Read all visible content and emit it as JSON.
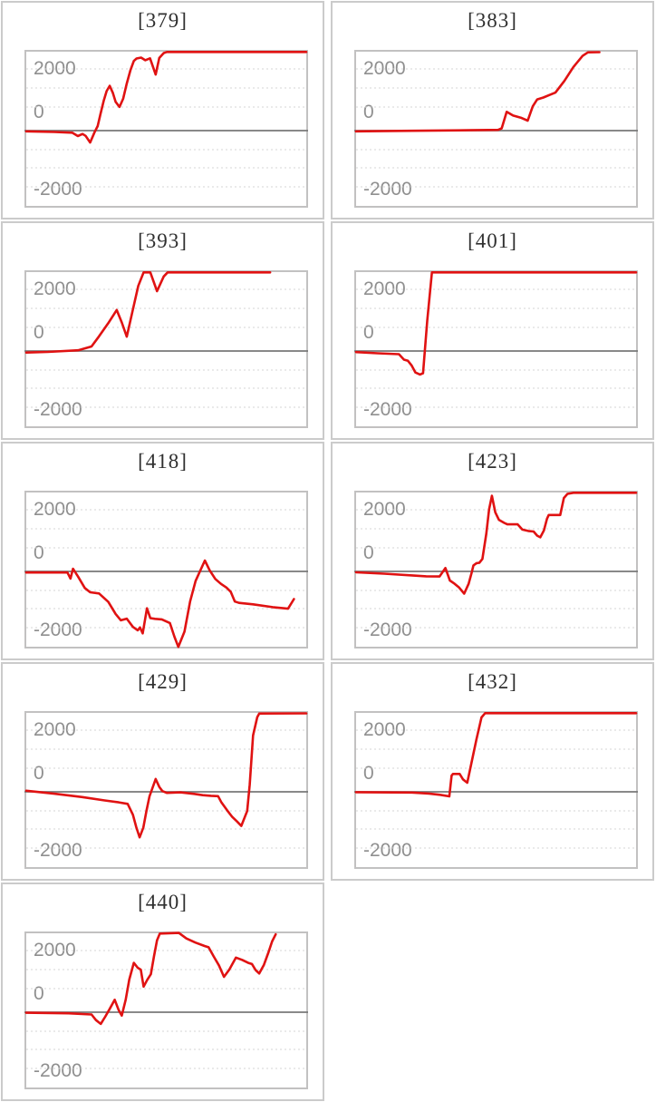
{
  "page": {
    "background": "#ffffff",
    "layout": "3x3-grid-of-sparkline-charts"
  },
  "axis": {
    "tick_labels": {
      "top": "2000",
      "mid": "0",
      "bottom": "-2000"
    },
    "gridline_interval_units": 500,
    "zero_line_value": 0,
    "visible_range": [
      -2100,
      2100
    ],
    "grid": "dotted-horizontal"
  },
  "style": {
    "line_color": "#e01212",
    "grid_color": "#d6d6d6",
    "zero_line_color": "#787878",
    "plot_border_color": "#c2c1c1",
    "tile_border_color": "#cbcbcb",
    "label_color": "#8f8f8f",
    "title_color": "#303030"
  },
  "chart_data": [
    {
      "type": "line",
      "title": "[379]",
      "ylabel": "",
      "xlabel": "",
      "ylim": [
        -2100,
        2100
      ],
      "legend": "none",
      "points": [
        [
          0,
          -20
        ],
        [
          10,
          -35
        ],
        [
          16.4,
          -55
        ],
        [
          18.4,
          -145
        ],
        [
          20.1,
          -90
        ],
        [
          21.2,
          -140
        ],
        [
          22.8,
          -315
        ],
        [
          24.4,
          -40
        ],
        [
          25.5,
          120
        ],
        [
          26.5,
          440
        ],
        [
          27.7,
          805
        ],
        [
          28.7,
          1050
        ],
        [
          29.8,
          1190
        ],
        [
          30.9,
          1005
        ],
        [
          31.9,
          765
        ],
        [
          33.3,
          630
        ],
        [
          34.6,
          845
        ],
        [
          35.9,
          1250
        ],
        [
          37.2,
          1600
        ],
        [
          38.4,
          1850
        ],
        [
          39.4,
          1915
        ],
        [
          41,
          1940
        ],
        [
          42.5,
          1870
        ],
        [
          44.2,
          1920
        ],
        [
          46.2,
          1490
        ],
        [
          47.5,
          1930
        ],
        [
          49.1,
          2060
        ],
        [
          50.2,
          2090
        ],
        [
          100,
          2090
        ]
      ]
    },
    {
      "type": "line",
      "title": "[383]",
      "ylabel": "",
      "xlabel": "",
      "ylim": [
        -2100,
        2100
      ],
      "legend": "none",
      "points": [
        [
          0,
          -20
        ],
        [
          20,
          -5
        ],
        [
          40,
          10
        ],
        [
          50.7,
          20
        ],
        [
          52,
          60
        ],
        [
          53.8,
          500
        ],
        [
          56.1,
          400
        ],
        [
          58.8,
          345
        ],
        [
          61.3,
          265
        ],
        [
          63.1,
          645
        ],
        [
          64.7,
          830
        ],
        [
          66.9,
          880
        ],
        [
          69,
          945
        ],
        [
          71.2,
          1010
        ],
        [
          74.4,
          1320
        ],
        [
          77.6,
          1690
        ],
        [
          80.9,
          1985
        ],
        [
          82.8,
          2080
        ],
        [
          86.9,
          2085
        ]
      ]
    },
    {
      "type": "line",
      "title": "[393]",
      "ylabel": "",
      "xlabel": "",
      "ylim": [
        -2100,
        2100
      ],
      "legend": "none",
      "points": [
        [
          0,
          -40
        ],
        [
          7.7,
          -25
        ],
        [
          18.5,
          20
        ],
        [
          23.3,
          120
        ],
        [
          26,
          390
        ],
        [
          29.3,
          740
        ],
        [
          32.3,
          1090
        ],
        [
          34.1,
          760
        ],
        [
          35.9,
          380
        ],
        [
          37.8,
          1010
        ],
        [
          40,
          1730
        ],
        [
          41.9,
          2090
        ],
        [
          44.3,
          2090
        ],
        [
          46.7,
          1590
        ],
        [
          49.1,
          1980
        ],
        [
          50.5,
          2090
        ],
        [
          87.1,
          2090
        ]
      ]
    },
    {
      "type": "line",
      "title": "[401]",
      "ylabel": "",
      "xlabel": "",
      "ylim": [
        -2100,
        2100
      ],
      "legend": "none",
      "points": [
        [
          0,
          -30
        ],
        [
          7.7,
          -60
        ],
        [
          15.3,
          -85
        ],
        [
          17.1,
          -230
        ],
        [
          18.5,
          -260
        ],
        [
          19.8,
          -380
        ],
        [
          21.2,
          -570
        ],
        [
          22.8,
          -625
        ],
        [
          23.9,
          -590
        ],
        [
          25.4,
          800
        ],
        [
          27.1,
          2090
        ],
        [
          100,
          2090
        ]
      ]
    },
    {
      "type": "line",
      "title": "[418]",
      "ylabel": "",
      "xlabel": "",
      "ylim": [
        -2100,
        2100
      ],
      "legend": "none",
      "points": [
        [
          0,
          -30
        ],
        [
          14.7,
          -30
        ],
        [
          15.8,
          -190
        ],
        [
          16.7,
          70
        ],
        [
          18.5,
          -140
        ],
        [
          20.9,
          -440
        ],
        [
          22.8,
          -555
        ],
        [
          26,
          -585
        ],
        [
          29.3,
          -810
        ],
        [
          31.9,
          -1130
        ],
        [
          33.8,
          -1300
        ],
        [
          35.9,
          -1255
        ],
        [
          38.1,
          -1475
        ],
        [
          39.8,
          -1565
        ],
        [
          40.6,
          -1490
        ],
        [
          41.6,
          -1645
        ],
        [
          43.1,
          -980
        ],
        [
          44.3,
          -1240
        ],
        [
          46,
          -1260
        ],
        [
          48.4,
          -1275
        ],
        [
          51.3,
          -1370
        ],
        [
          52.9,
          -1735
        ],
        [
          54.3,
          -2005
        ],
        [
          56.5,
          -1600
        ],
        [
          58.5,
          -800
        ],
        [
          60.5,
          -250
        ],
        [
          63.8,
          290
        ],
        [
          65.5,
          30
        ],
        [
          67.5,
          -200
        ],
        [
          69.5,
          -330
        ],
        [
          71.5,
          -430
        ],
        [
          73,
          -540
        ],
        [
          74.5,
          -800
        ],
        [
          76,
          -835
        ],
        [
          81,
          -875
        ],
        [
          88,
          -950
        ],
        [
          93.5,
          -990
        ],
        [
          95.6,
          -735
        ]
      ]
    },
    {
      "type": "line",
      "title": "[423]",
      "ylabel": "",
      "xlabel": "",
      "ylim": [
        -2100,
        2100
      ],
      "legend": "none",
      "points": [
        [
          0,
          -25
        ],
        [
          10,
          -60
        ],
        [
          20,
          -105
        ],
        [
          25,
          -130
        ],
        [
          29.8,
          -135
        ],
        [
          31.9,
          90
        ],
        [
          33.5,
          -240
        ],
        [
          35.2,
          -330
        ],
        [
          36.8,
          -430
        ],
        [
          38.6,
          -590
        ],
        [
          40.2,
          -330
        ],
        [
          41.3,
          -30
        ],
        [
          41.9,
          160
        ],
        [
          43,
          220
        ],
        [
          44,
          230
        ],
        [
          45.1,
          330
        ],
        [
          46.5,
          1000
        ],
        [
          47.5,
          1650
        ],
        [
          48.5,
          2010
        ],
        [
          49.7,
          1570
        ],
        [
          51,
          1370
        ],
        [
          52.9,
          1290
        ],
        [
          54,
          1250
        ],
        [
          57.7,
          1250
        ],
        [
          59.4,
          1110
        ],
        [
          61.5,
          1075
        ],
        [
          63.4,
          1060
        ],
        [
          64.7,
          950
        ],
        [
          65.8,
          905
        ],
        [
          67.1,
          1090
        ],
        [
          68.2,
          1400
        ],
        [
          68.8,
          1500
        ],
        [
          72.9,
          1500
        ],
        [
          74.2,
          1950
        ],
        [
          75.5,
          2060
        ],
        [
          77.6,
          2090
        ],
        [
          100,
          2090
        ]
      ]
    },
    {
      "type": "line",
      "title": "[429]",
      "ylabel": "",
      "xlabel": "",
      "ylim": [
        -2100,
        2100
      ],
      "legend": "none",
      "points": [
        [
          0,
          30
        ],
        [
          10,
          -50
        ],
        [
          20,
          -140
        ],
        [
          28,
          -230
        ],
        [
          33,
          -280
        ],
        [
          36.2,
          -320
        ],
        [
          38.1,
          -610
        ],
        [
          39.3,
          -940
        ],
        [
          40.5,
          -1210
        ],
        [
          41.8,
          -950
        ],
        [
          42.9,
          -510
        ],
        [
          44,
          -120
        ],
        [
          46.2,
          340
        ],
        [
          47.5,
          130
        ],
        [
          48.6,
          20
        ],
        [
          50.2,
          -30
        ],
        [
          55,
          -15
        ],
        [
          60,
          -55
        ],
        [
          63,
          -90
        ],
        [
          66,
          -105
        ],
        [
          68.5,
          -115
        ],
        [
          69.6,
          -270
        ],
        [
          71.7,
          -490
        ],
        [
          73.5,
          -660
        ],
        [
          75.3,
          -790
        ],
        [
          76.8,
          -905
        ],
        [
          78.9,
          -510
        ],
        [
          79.8,
          190
        ],
        [
          81,
          1500
        ],
        [
          82.5,
          1980
        ],
        [
          83.2,
          2080
        ],
        [
          100,
          2085
        ]
      ]
    },
    {
      "type": "line",
      "title": "[432]",
      "ylabel": "",
      "xlabel": "",
      "ylim": [
        -2100,
        2100
      ],
      "legend": "none",
      "points": [
        [
          0,
          -10
        ],
        [
          20,
          -20
        ],
        [
          26,
          -45
        ],
        [
          30,
          -80
        ],
        [
          33.3,
          -120
        ],
        [
          34.1,
          430
        ],
        [
          34.6,
          475
        ],
        [
          37,
          475
        ],
        [
          38.2,
          330
        ],
        [
          39.7,
          240
        ],
        [
          41.1,
          730
        ],
        [
          43,
          1400
        ],
        [
          44.8,
          1975
        ],
        [
          46.1,
          2090
        ],
        [
          100,
          2090
        ]
      ]
    },
    {
      "type": "line",
      "title": "[440]",
      "ylabel": "",
      "xlabel": "",
      "ylim": [
        -2100,
        2100
      ],
      "legend": "none",
      "points": [
        [
          0,
          -15
        ],
        [
          15,
          -30
        ],
        [
          23.3,
          -60
        ],
        [
          24.9,
          -210
        ],
        [
          26.6,
          -310
        ],
        [
          28.2,
          -120
        ],
        [
          29.8,
          90
        ],
        [
          31.6,
          330
        ],
        [
          33,
          55
        ],
        [
          34.1,
          -90
        ],
        [
          35.5,
          330
        ],
        [
          36.8,
          870
        ],
        [
          38.4,
          1310
        ],
        [
          39.8,
          1180
        ],
        [
          40.9,
          1130
        ],
        [
          41.9,
          680
        ],
        [
          43.2,
          860
        ],
        [
          44.5,
          1010
        ],
        [
          45.6,
          1480
        ],
        [
          46.7,
          1910
        ],
        [
          47.7,
          2090
        ],
        [
          54.5,
          2105
        ],
        [
          57.2,
          1960
        ],
        [
          60.4,
          1850
        ],
        [
          63.7,
          1760
        ],
        [
          65.1,
          1725
        ],
        [
          66.9,
          1490
        ],
        [
          68.8,
          1245
        ],
        [
          70.6,
          940
        ],
        [
          72.5,
          1130
        ],
        [
          74.9,
          1450
        ],
        [
          77.1,
          1390
        ],
        [
          79.3,
          1310
        ],
        [
          80.6,
          1280
        ],
        [
          81.9,
          1120
        ],
        [
          83.2,
          1030
        ],
        [
          84.9,
          1260
        ],
        [
          86.5,
          1590
        ],
        [
          87.8,
          1880
        ],
        [
          89.1,
          2070
        ]
      ]
    }
  ]
}
